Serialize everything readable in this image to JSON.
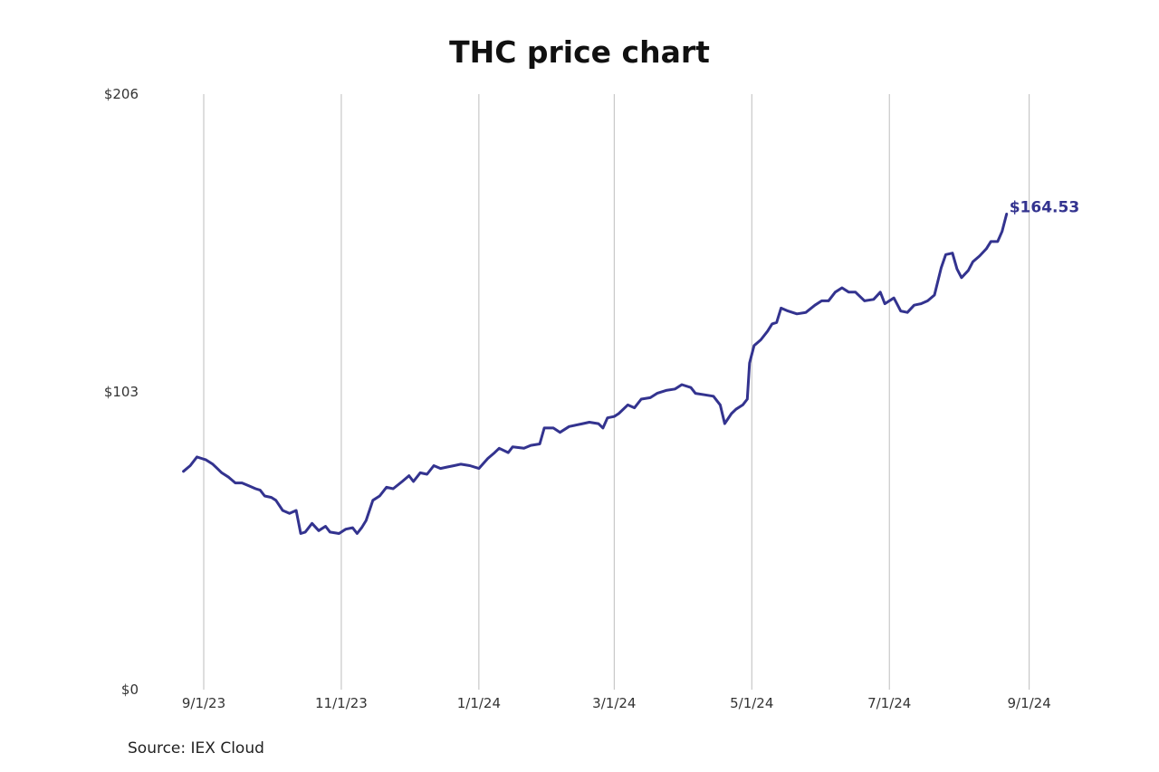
{
  "chart_data": {
    "type": "line",
    "title": "THC price chart",
    "xlabel": "",
    "ylabel": "",
    "ylim": [
      0,
      206
    ],
    "y_ticks": [
      {
        "value": 0,
        "label": "$0"
      },
      {
        "value": 103,
        "label": "$103"
      },
      {
        "value": 206,
        "label": "$206"
      }
    ],
    "x_ticks": [
      {
        "value": "2023-09-01",
        "label": "9/1/23"
      },
      {
        "value": "2023-11-01",
        "label": "11/1/23"
      },
      {
        "value": "2024-01-01",
        "label": "1/1/24"
      },
      {
        "value": "2024-03-01",
        "label": "3/1/24"
      },
      {
        "value": "2024-05-01",
        "label": "5/1/24"
      },
      {
        "value": "2024-07-01",
        "label": "7/1/24"
      },
      {
        "value": "2024-09-01",
        "label": "9/1/24"
      }
    ],
    "grid": {
      "vertical": true,
      "horizontal": false
    },
    "line_color": "#33338f",
    "last_value_label": "$164.53",
    "series": [
      {
        "points": [
          [
            "2023-08-23",
            75.5
          ],
          [
            "2023-08-26",
            77.5
          ],
          [
            "2023-08-29",
            80.5
          ],
          [
            "2023-08-31",
            80.0
          ],
          [
            "2023-09-02",
            79.5
          ],
          [
            "2023-09-05",
            78.0
          ],
          [
            "2023-09-07",
            76.5
          ],
          [
            "2023-09-09",
            75.0
          ],
          [
            "2023-09-12",
            73.5
          ],
          [
            "2023-09-15",
            71.5
          ],
          [
            "2023-09-18",
            71.5
          ],
          [
            "2023-09-21",
            70.5
          ],
          [
            "2023-09-24",
            69.5
          ],
          [
            "2023-09-26",
            69.0
          ],
          [
            "2023-09-28",
            67.0
          ],
          [
            "2023-10-01",
            66.5
          ],
          [
            "2023-10-03",
            65.5
          ],
          [
            "2023-10-06",
            62.0
          ],
          [
            "2023-10-09",
            61.0
          ],
          [
            "2023-10-12",
            62.0
          ],
          [
            "2023-10-14",
            54.0
          ],
          [
            "2023-10-16",
            54.5
          ],
          [
            "2023-10-19",
            57.5
          ],
          [
            "2023-10-22",
            55.0
          ],
          [
            "2023-10-25",
            56.5
          ],
          [
            "2023-10-27",
            54.5
          ],
          [
            "2023-10-31",
            54.0
          ],
          [
            "2023-11-03",
            55.5
          ],
          [
            "2023-11-06",
            56.0
          ],
          [
            "2023-11-08",
            54.0
          ],
          [
            "2023-11-10",
            56.0
          ],
          [
            "2023-11-12",
            58.5
          ],
          [
            "2023-11-15",
            65.5
          ],
          [
            "2023-11-18",
            67.0
          ],
          [
            "2023-11-21",
            70.0
          ],
          [
            "2023-11-24",
            69.5
          ],
          [
            "2023-11-28",
            72.0
          ],
          [
            "2023-12-01",
            74.0
          ],
          [
            "2023-12-03",
            72.0
          ],
          [
            "2023-12-06",
            75.0
          ],
          [
            "2023-12-09",
            74.5
          ],
          [
            "2023-12-12",
            77.5
          ],
          [
            "2023-12-15",
            76.5
          ],
          [
            "2023-12-18",
            77.0
          ],
          [
            "2023-12-21",
            77.5
          ],
          [
            "2023-12-24",
            78.0
          ],
          [
            "2023-12-28",
            77.5
          ],
          [
            "2024-01-01",
            76.5
          ],
          [
            "2024-01-05",
            80.0
          ],
          [
            "2024-01-08",
            82.0
          ],
          [
            "2024-01-10",
            83.5
          ],
          [
            "2024-01-14",
            82.0
          ],
          [
            "2024-01-16",
            84.0
          ],
          [
            "2024-01-21",
            83.5
          ],
          [
            "2024-01-24",
            84.5
          ],
          [
            "2024-01-28",
            85.0
          ],
          [
            "2024-01-30",
            90.5
          ],
          [
            "2024-02-03",
            90.5
          ],
          [
            "2024-02-06",
            89.0
          ],
          [
            "2024-02-10",
            91.0
          ],
          [
            "2024-02-13",
            91.5
          ],
          [
            "2024-02-16",
            92.0
          ],
          [
            "2024-02-19",
            92.5
          ],
          [
            "2024-02-23",
            92.0
          ],
          [
            "2024-02-25",
            90.5
          ],
          [
            "2024-02-27",
            94.0
          ],
          [
            "2024-03-01",
            94.5
          ],
          [
            "2024-03-03",
            95.5
          ],
          [
            "2024-03-07",
            98.5
          ],
          [
            "2024-03-10",
            97.5
          ],
          [
            "2024-03-13",
            100.5
          ],
          [
            "2024-03-17",
            101.0
          ],
          [
            "2024-03-20",
            102.5
          ],
          [
            "2024-03-24",
            103.5
          ],
          [
            "2024-03-28",
            104.0
          ],
          [
            "2024-03-31",
            105.5
          ],
          [
            "2024-04-04",
            104.5
          ],
          [
            "2024-04-06",
            102.5
          ],
          [
            "2024-04-10",
            102.0
          ],
          [
            "2024-04-14",
            101.5
          ],
          [
            "2024-04-17",
            98.5
          ],
          [
            "2024-04-19",
            92.0
          ],
          [
            "2024-04-22",
            95.5
          ],
          [
            "2024-04-24",
            97.0
          ],
          [
            "2024-04-27",
            98.5
          ],
          [
            "2024-04-29",
            100.5
          ],
          [
            "2024-04-30",
            113.0
          ],
          [
            "2024-05-02",
            119.0
          ],
          [
            "2024-05-05",
            121.0
          ],
          [
            "2024-05-08",
            124.0
          ],
          [
            "2024-05-10",
            126.5
          ],
          [
            "2024-05-12",
            127.0
          ],
          [
            "2024-05-14",
            132.0
          ],
          [
            "2024-05-17",
            131.0
          ],
          [
            "2024-05-21",
            130.0
          ],
          [
            "2024-05-25",
            130.5
          ],
          [
            "2024-05-29",
            133.0
          ],
          [
            "2024-06-01",
            134.5
          ],
          [
            "2024-06-04",
            134.5
          ],
          [
            "2024-06-07",
            137.5
          ],
          [
            "2024-06-10",
            139.0
          ],
          [
            "2024-06-13",
            137.5
          ],
          [
            "2024-06-16",
            137.5
          ],
          [
            "2024-06-20",
            134.5
          ],
          [
            "2024-06-24",
            135.0
          ],
          [
            "2024-06-27",
            137.5
          ],
          [
            "2024-06-29",
            133.5
          ],
          [
            "2024-07-03",
            135.5
          ],
          [
            "2024-07-06",
            131.0
          ],
          [
            "2024-07-09",
            130.5
          ],
          [
            "2024-07-12",
            133.0
          ],
          [
            "2024-07-15",
            133.5
          ],
          [
            "2024-07-18",
            134.5
          ],
          [
            "2024-07-21",
            136.5
          ],
          [
            "2024-07-24",
            146.0
          ],
          [
            "2024-07-26",
            150.5
          ],
          [
            "2024-07-29",
            151.0
          ],
          [
            "2024-07-31",
            145.5
          ],
          [
            "2024-08-02",
            142.5
          ],
          [
            "2024-08-05",
            145.0
          ],
          [
            "2024-08-07",
            148.0
          ],
          [
            "2024-08-10",
            150.0
          ],
          [
            "2024-08-13",
            152.5
          ],
          [
            "2024-08-15",
            155.0
          ],
          [
            "2024-08-18",
            155.0
          ],
          [
            "2024-08-20",
            158.5
          ],
          [
            "2024-08-22",
            164.53
          ]
        ]
      }
    ]
  },
  "source": "Source: IEX Cloud"
}
